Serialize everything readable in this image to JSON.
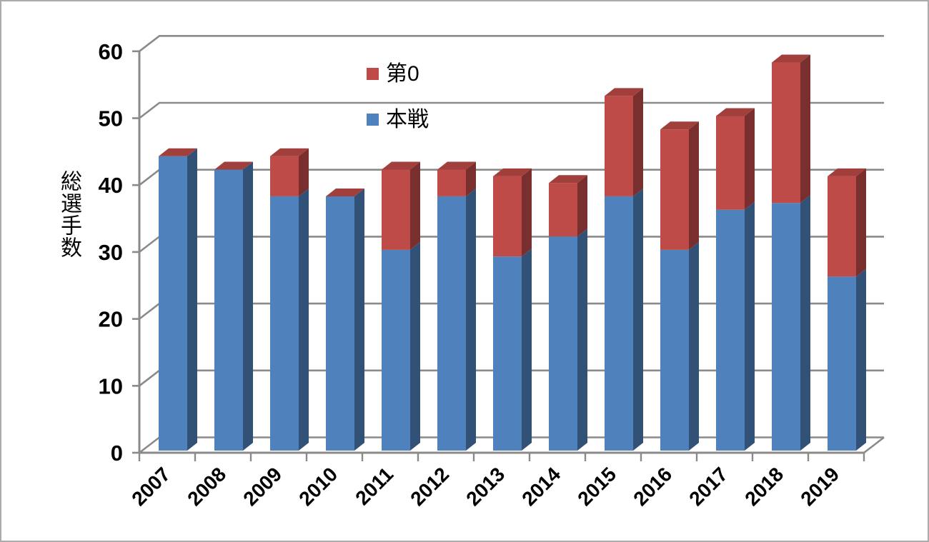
{
  "window": {
    "background_color": "#ffffff",
    "border_color": "#ABABAB"
  },
  "chart_data": {
    "type": "bar",
    "bar_style": "3d-column",
    "stacked": true,
    "title": "",
    "xlabel": "",
    "ylabel": "総選手数",
    "ylim": [
      0,
      60
    ],
    "yticks": [
      0,
      10,
      20,
      30,
      40,
      50,
      60
    ],
    "ytick_labels": [
      "0",
      "10",
      "20",
      "30",
      "40",
      "50",
      "60"
    ],
    "grid": true,
    "gridline_color": "#8A8A8A",
    "axis_color": "#8A8A8A",
    "text_color": "#000000",
    "legend_position": "inside-top-center",
    "categories": [
      "2007",
      "2008",
      "2009",
      "2010",
      "2011",
      "2012",
      "2013",
      "2014",
      "2015",
      "2016",
      "2017",
      "2018",
      "2019"
    ],
    "stack_order_bottom_to_top": [
      "本戦",
      "第0"
    ],
    "series": [
      {
        "name": "第0",
        "color": "#BE4B48",
        "values": [
          0,
          0,
          6,
          0,
          12,
          4,
          12,
          8,
          15,
          18,
          14,
          21,
          15
        ]
      },
      {
        "name": "本戦",
        "color": "#4F81BD",
        "values": [
          44,
          42,
          38,
          38,
          30,
          38,
          29,
          32,
          38,
          30,
          36,
          37,
          26
        ]
      }
    ],
    "totals": [
      44,
      42,
      44,
      38,
      42,
      42,
      41,
      40,
      53,
      48,
      50,
      58,
      41
    ]
  }
}
